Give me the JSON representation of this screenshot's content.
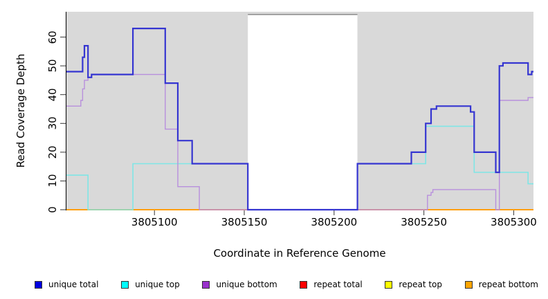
{
  "chart_data": {
    "type": "line",
    "subtype": "step",
    "title": "",
    "xlabel": "Coordinate in Reference Genome",
    "ylabel": "Read Coverage Depth",
    "xlim": [
      3805051,
      3805311
    ],
    "ylim": [
      0,
      68.8
    ],
    "x_ticks": [
      3805100,
      3805150,
      3805200,
      3805250,
      3805300
    ],
    "y_ticks": [
      0,
      10,
      20,
      30,
      40,
      50,
      60
    ],
    "grid": "off",
    "background": "#d9d9d9",
    "axis_color": "#000000",
    "legend_position": "bottom",
    "masked_region": {
      "x_start": 3805152,
      "x_end": 3805213,
      "fill": "#ffffff",
      "border_top": "#8a8a8a"
    },
    "series": [
      {
        "name": "unique total",
        "legend_color": "#0000e0",
        "line_color": "#3535d1",
        "points": [
          [
            3805051,
            48
          ],
          [
            3805060,
            53
          ],
          [
            3805061,
            57
          ],
          [
            3805063,
            46
          ],
          [
            3805065,
            47
          ],
          [
            3805088,
            63
          ],
          [
            3805106,
            44
          ],
          [
            3805113,
            24
          ],
          [
            3805121,
            16
          ],
          [
            3805152,
            0
          ],
          [
            3805213,
            16
          ],
          [
            3805243,
            20
          ],
          [
            3805251,
            30
          ],
          [
            3805254,
            35
          ],
          [
            3805257,
            36
          ],
          [
            3805276,
            34
          ],
          [
            3805278,
            20
          ],
          [
            3805290,
            13
          ],
          [
            3805292,
            50
          ],
          [
            3805294,
            51
          ],
          [
            3805308,
            47
          ],
          [
            3805310,
            48
          ]
        ]
      },
      {
        "name": "unique top",
        "legend_color": "#00ffff",
        "line_color": "#7fe6e6",
        "points": [
          [
            3805051,
            12
          ],
          [
            3805063,
            0
          ],
          [
            3805088,
            16
          ],
          [
            3805152,
            0
          ],
          [
            3805213,
            16
          ],
          [
            3805251,
            29
          ],
          [
            3805278,
            13
          ],
          [
            3805308,
            9
          ]
        ]
      },
      {
        "name": "unique bottom",
        "legend_color": "#9932cc",
        "line_color": "#b88fdd",
        "points": [
          [
            3805051,
            36
          ],
          [
            3805059,
            38
          ],
          [
            3805060,
            42
          ],
          [
            3805061,
            45
          ],
          [
            3805063,
            46
          ],
          [
            3805065,
            47
          ],
          [
            3805106,
            28
          ],
          [
            3805113,
            8
          ],
          [
            3805125,
            0
          ],
          [
            3805252,
            5
          ],
          [
            3805254,
            6
          ],
          [
            3805255,
            7
          ],
          [
            3805290,
            0
          ],
          [
            3805292,
            38
          ],
          [
            3805308,
            39
          ]
        ]
      },
      {
        "name": "repeat total",
        "legend_color": "#ff0000",
        "line_color": "#e02030",
        "points": [
          [
            3805051,
            0
          ]
        ]
      },
      {
        "name": "repeat top",
        "legend_color": "#ffff00",
        "line_color": "#ffe000",
        "points": [
          [
            3805051,
            0
          ]
        ]
      },
      {
        "name": "repeat bottom",
        "legend_color": "#ffa500",
        "line_color": "#ff9f10",
        "points": [
          [
            3805051,
            0
          ]
        ]
      }
    ]
  }
}
